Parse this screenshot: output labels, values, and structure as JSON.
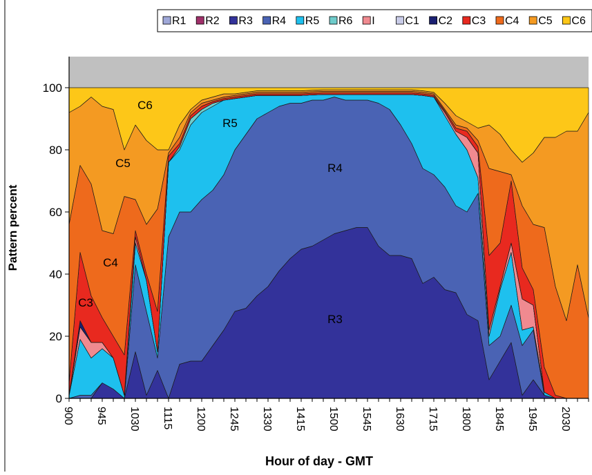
{
  "chart_data": {
    "type": "stacked-area",
    "xlabel": "Hour of day - GMT",
    "ylabel": "Pattern percent",
    "categories": [
      "900",
      null,
      null,
      "945",
      null,
      null,
      "1030",
      null,
      null,
      "1115",
      null,
      null,
      "1200",
      null,
      null,
      "1245",
      null,
      null,
      "1330",
      null,
      null,
      "1415",
      null,
      null,
      "1500",
      null,
      null,
      "1545",
      null,
      null,
      "1630",
      null,
      null,
      "1715",
      null,
      null,
      "1800",
      null,
      null,
      "1845",
      null,
      null,
      "1945",
      null,
      null,
      "2030",
      null,
      null
    ],
    "ylim": [
      0,
      110
    ],
    "yticks": [
      0,
      20,
      40,
      60,
      80,
      100
    ],
    "legend": "top",
    "series": [
      {
        "name": "R1",
        "color": "#9fa8d8",
        "values": [
          0,
          0,
          0,
          0,
          0,
          0,
          0,
          0,
          0,
          0,
          0,
          0,
          0,
          0,
          0,
          0,
          0,
          0,
          0,
          0,
          0,
          0,
          0,
          0,
          0,
          0,
          0,
          0,
          0,
          0,
          0,
          0,
          0,
          0,
          0,
          0,
          0,
          0,
          0,
          0,
          0,
          0,
          0,
          0,
          0,
          0,
          0,
          0
        ]
      },
      {
        "name": "R2",
        "color": "#a0306a",
        "values": [
          0,
          0,
          0,
          0,
          0,
          0,
          0,
          0,
          0,
          0,
          0,
          0,
          0,
          0,
          0,
          0,
          0,
          0,
          0,
          0,
          0,
          0,
          0,
          0,
          0,
          0,
          0,
          0,
          0,
          0,
          0,
          0,
          0,
          0,
          0,
          0,
          0,
          0,
          0,
          0,
          0,
          0,
          0,
          0,
          0,
          0,
          0,
          0
        ]
      },
      {
        "name": "R3",
        "color": "#33329a",
        "values": [
          0,
          0,
          0,
          5,
          3,
          0,
          15,
          1,
          9,
          0,
          11,
          12,
          12,
          17,
          22,
          28,
          29,
          33,
          36,
          41,
          45,
          48,
          49,
          51,
          53,
          54,
          55,
          55,
          49,
          46,
          46,
          45,
          37,
          39,
          35,
          34,
          27,
          25,
          6,
          12,
          18,
          1,
          6,
          1,
          0,
          0,
          0,
          0
        ]
      },
      {
        "name": "R4",
        "color": "#4a63b4",
        "values": [
          0,
          1,
          1,
          0,
          0,
          0,
          28,
          27,
          4,
          52,
          49,
          48,
          52,
          50,
          50,
          52,
          56,
          57,
          56,
          53,
          50,
          47,
          47,
          45,
          44,
          42,
          41,
          41,
          46,
          47,
          42,
          37,
          37,
          33,
          33,
          28,
          33,
          41,
          11,
          8,
          12,
          16,
          16,
          0,
          0,
          0,
          0,
          0
        ]
      },
      {
        "name": "R5",
        "color": "#1ec0ee",
        "values": [
          1,
          18,
          12,
          11,
          10,
          1,
          7,
          10,
          2,
          24,
          20,
          28,
          28,
          27,
          24,
          16.5,
          12,
          7.5,
          5.5,
          3.5,
          2.5,
          2.5,
          1.7,
          1.8,
          0.8,
          1.8,
          1.8,
          1.8,
          2.8,
          4.8,
          9.8,
          15.8,
          23.5,
          25,
          23,
          23,
          20,
          5,
          3,
          15,
          17,
          5,
          1,
          1,
          0,
          0,
          0,
          0
        ]
      },
      {
        "name": "R6",
        "color": "#6fcccb",
        "values": [
          0,
          0,
          0,
          0,
          0,
          0,
          0,
          0,
          0,
          0,
          1,
          2,
          1,
          1,
          0,
          0,
          0,
          0,
          0,
          0,
          0,
          0,
          0,
          0,
          0,
          0,
          0,
          0,
          0,
          0,
          0,
          0,
          0,
          0,
          0,
          0,
          0,
          0,
          0,
          0,
          0,
          0,
          0,
          0,
          0,
          0,
          0,
          0
        ]
      },
      {
        "name": "I",
        "color": "#f08a90",
        "values": [
          0,
          4,
          5,
          2,
          0,
          0,
          2,
          0,
          0,
          0,
          0,
          0,
          0,
          0,
          0,
          0,
          0,
          0,
          0,
          0,
          0,
          0,
          0,
          0,
          0,
          0,
          0,
          0,
          0,
          0,
          0,
          0,
          0,
          0,
          1,
          1,
          4,
          8,
          2,
          1,
          3,
          10,
          7,
          0,
          0,
          0,
          0,
          0
        ]
      },
      {
        "name": "C1",
        "color": "#c9cce8",
        "values": [
          0,
          0,
          0,
          0,
          0,
          0,
          0,
          0,
          0,
          0,
          0,
          0,
          0,
          0,
          0,
          0,
          0,
          0,
          0,
          0,
          0,
          0,
          0,
          0,
          0,
          0,
          0,
          0,
          0,
          0,
          0,
          0,
          0,
          0,
          0,
          0,
          0,
          0,
          0,
          0,
          0,
          0,
          0,
          0,
          0,
          0,
          0,
          0
        ]
      },
      {
        "name": "C2",
        "color": "#1a2072",
        "values": [
          0,
          2,
          0,
          0,
          0,
          0,
          0,
          0,
          0,
          0,
          0,
          0,
          0,
          0,
          0,
          0,
          0,
          0,
          0,
          0,
          0,
          0,
          0,
          0,
          0,
          0,
          0,
          0,
          0,
          0,
          0,
          0,
          0,
          0,
          0,
          0,
          0,
          0,
          0,
          0,
          0,
          0,
          0,
          0,
          0,
          0,
          0,
          0
        ]
      },
      {
        "name": "C3",
        "color": "#e8291f",
        "values": [
          4,
          22,
          15,
          8,
          7,
          13,
          2,
          2,
          13,
          2,
          1,
          1,
          1,
          0.5,
          0.5,
          0.5,
          0.5,
          0.5,
          0.5,
          0.5,
          0.5,
          0.5,
          0.5,
          0.5,
          0.5,
          0.5,
          0.5,
          0.5,
          0.5,
          0.5,
          0.5,
          0.5,
          0.5,
          0.5,
          0.5,
          1,
          2,
          2,
          24,
          14,
          20,
          10,
          5,
          8,
          1,
          0,
          0,
          0
        ]
      },
      {
        "name": "C4",
        "color": "#ee6a1c",
        "values": [
          51,
          28,
          36,
          28,
          33,
          51,
          10,
          16,
          33,
          1,
          2,
          1,
          1,
          0.5,
          0.5,
          0.5,
          0.5,
          0.5,
          0.5,
          0.5,
          0.5,
          0.5,
          0.5,
          0.5,
          0.5,
          0.5,
          0.5,
          0.5,
          0.5,
          0.5,
          0.5,
          0.5,
          0.5,
          0.5,
          0.5,
          1,
          1,
          2,
          28,
          23,
          2,
          20,
          21,
          45,
          35,
          25,
          43,
          26
        ]
      },
      {
        "name": "C5",
        "color": "#f49a22",
        "values": [
          36,
          19,
          28,
          40,
          40,
          15,
          24,
          27,
          19,
          1,
          4,
          1,
          1,
          1,
          1,
          0.5,
          0.5,
          0.5,
          0.5,
          0.5,
          0.5,
          0.5,
          0.5,
          0.5,
          0.5,
          0.5,
          0.5,
          0.5,
          0.5,
          0.5,
          0.5,
          0.5,
          0.5,
          0.5,
          2,
          3,
          2,
          4,
          14,
          12,
          8,
          14,
          23,
          29,
          48,
          61,
          43,
          66
        ]
      },
      {
        "name": "C6",
        "color": "#fdc718",
        "values": [
          8,
          6,
          3,
          6,
          7,
          20,
          12,
          17,
          20,
          20,
          12,
          7,
          4,
          3,
          2,
          2,
          1.5,
          1,
          1,
          1,
          1,
          1,
          0.8,
          0.7,
          0.7,
          0.7,
          0.7,
          0.7,
          0.7,
          0.7,
          0.7,
          0.7,
          1,
          1.5,
          5,
          9,
          11,
          13,
          12,
          15,
          20,
          24,
          21,
          16,
          16,
          14,
          14,
          8
        ]
      }
    ],
    "annotations": [
      "C6",
      "R5",
      "C5",
      "R4",
      "C4",
      "C3",
      "R3"
    ]
  }
}
